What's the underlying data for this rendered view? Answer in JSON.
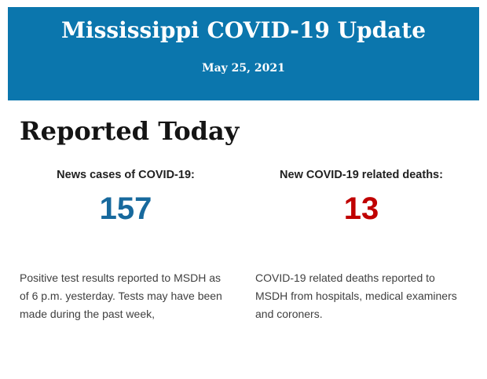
{
  "banner": {
    "title": "Mississippi COVID-19 Update",
    "date": "May 25, 2021",
    "bg_color": "#0b76ad",
    "text_color": "#ffffff"
  },
  "section": {
    "heading": "Reported Today"
  },
  "stats": [
    {
      "label": "News cases of COVID-19:",
      "value": "157",
      "value_color": "#17699d",
      "description": "Positive test results reported to MSDH as of 6 p.m. yesterday. Tests may have been made during the past week,"
    },
    {
      "label": "New COVID-19 related deaths:",
      "value": "13",
      "value_color": "#c00000",
      "description": "COVID-19 related deaths reported to MSDH from hospitals, medical examiners and coroners."
    }
  ]
}
